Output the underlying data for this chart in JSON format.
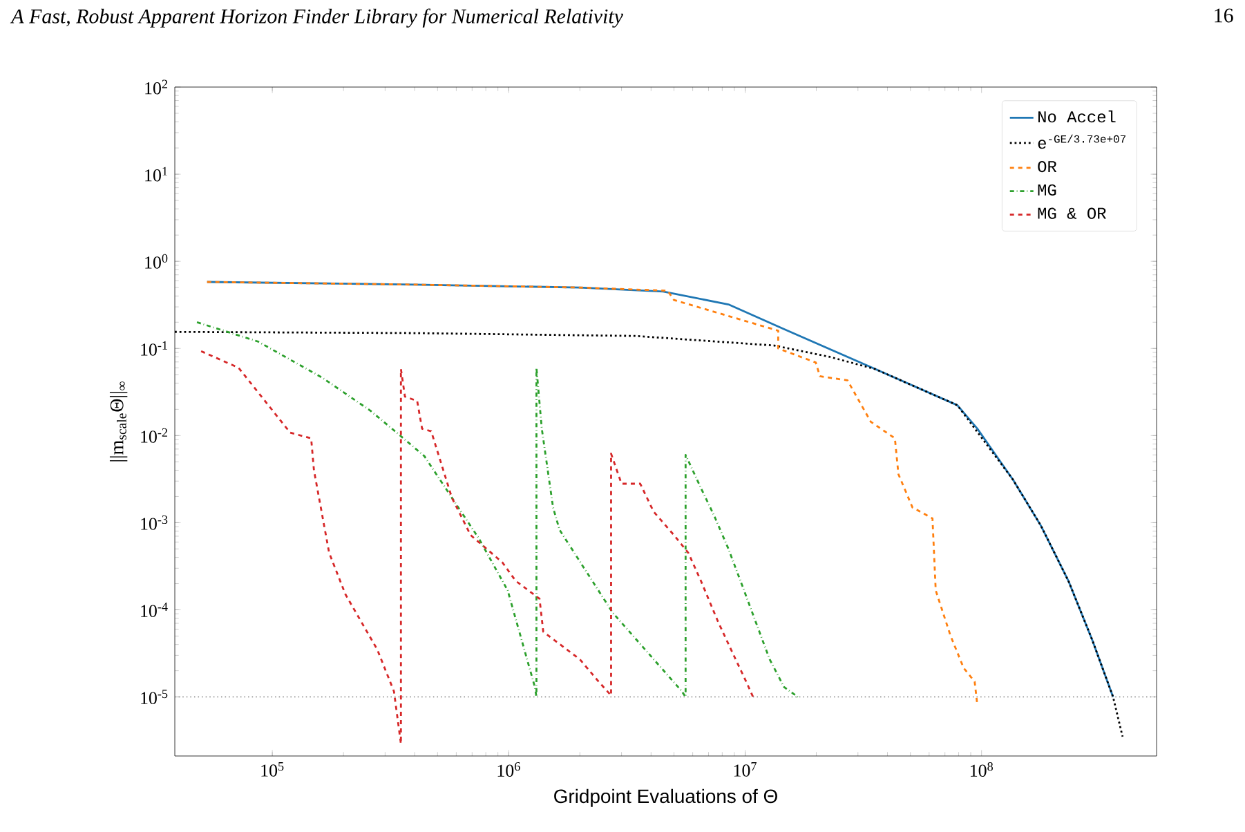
{
  "chart_data": {
    "type": "line",
    "annotations": [
      "A Fast, Robust Apparent Horizon Finder Library for Numerical Relativity",
      "16"
    ],
    "xlabel": "Gridpoint Evaluations of Θ",
    "ylabel": "||m$_{scale}$Θ||$_{∞}$",
    "log": "xy",
    "xlim": [
      38700,
      550000000
    ],
    "ylim": [
      2.1e-06,
      100
    ],
    "xticks": [
      {
        "value": 100000,
        "label": "10$^{5}$"
      },
      {
        "value": 1000000,
        "label": "10$^{6}$"
      },
      {
        "value": 10000000,
        "label": "10$^{7}$"
      },
      {
        "value": 100000000,
        "label": "10$^{8}$"
      }
    ],
    "yticks": [
      {
        "value": 1e-05,
        "label": "10$^{-5}$"
      },
      {
        "value": 0.0001,
        "label": "10$^{-4}$"
      },
      {
        "value": 0.001,
        "label": "10$^{-3}$"
      },
      {
        "value": 0.01,
        "label": "10$^{-2}$"
      },
      {
        "value": 0.1,
        "label": "10$^{-1}$"
      },
      {
        "value": 1,
        "label": "10$^{0}$"
      },
      {
        "value": 10,
        "label": "10$^{1}$"
      },
      {
        "value": 100,
        "label": "10$^{2}$"
      }
    ],
    "legend": "top right",
    "marker": "none",
    "ref_lines": [
      {
        "axis": "y",
        "value": 1e-05,
        "color": "#808080",
        "line_style": "dotted"
      }
    ],
    "series": [
      {
        "name": "No Accel",
        "color": "#1f77b4",
        "line_style": "solid",
        "x": [
          53000,
          400000,
          2000000,
          4500000,
          8500000,
          14600000,
          35500000,
          79000000,
          96000000,
          136000000,
          178000000,
          233000000,
          294000000,
          360000000
        ],
        "values": [
          0.58,
          0.54,
          0.5,
          0.45,
          0.32,
          0.167,
          0.058,
          0.0223,
          0.012,
          0.0031,
          0.00093,
          0.000215,
          4.5e-05,
          1e-05
        ]
      },
      {
        "name": "e$^{-GE/3.73e+07}$",
        "color": "#000000",
        "line_style": "dotted",
        "x": [
          38700,
          400000,
          3450000,
          13300000,
          22800000,
          35500000,
          79000000,
          136000000,
          178000000,
          233000000,
          294000000,
          360000000,
          395000000
        ],
        "values": [
          0.155,
          0.15,
          0.139,
          0.108,
          0.08,
          0.058,
          0.0223,
          0.0031,
          0.00093,
          0.000215,
          4.5e-05,
          1e-05,
          3.5e-06
        ]
      },
      {
        "name": "OR",
        "color": "#ff7f0e",
        "line_style": "dashed",
        "x": [
          53000,
          400000,
          2000000,
          4700000,
          5000000,
          13800000,
          13800000,
          19900000,
          20700000,
          27100000,
          34000000,
          43000000,
          44500000,
          51000000,
          62000000,
          64000000,
          74000000,
          84000000,
          93500000,
          96000000
        ],
        "values": [
          0.58,
          0.54,
          0.5,
          0.46,
          0.36,
          0.16,
          0.1,
          0.069,
          0.048,
          0.043,
          0.0144,
          0.0093,
          0.0036,
          0.0015,
          0.00112,
          0.000167,
          5e-05,
          2.15e-05,
          1.5e-05,
          8e-06
        ]
      },
      {
        "name": "MG",
        "color": "#2ca02c",
        "line_style": "dashdot",
        "x": [
          48000,
          87000,
          163000,
          260000,
          336000,
          440000,
          750000,
          990000,
          1290000,
          1310000,
          1310000,
          1380000,
          1540000,
          1640000,
          2750000,
          5400000,
          5600000,
          5600000,
          6500000,
          7400000,
          8500000,
          9700000,
          11100000,
          12700000,
          14600000,
          16700000
        ],
        "values": [
          0.2,
          0.12,
          0.046,
          0.0193,
          0.0108,
          0.0058,
          0.00065,
          0.000167,
          1.3e-05,
          1e-05,
          0.06,
          0.012,
          0.0015,
          0.00083,
          9.3e-05,
          1.16e-05,
          1e-05,
          0.006,
          0.0025,
          0.0012,
          0.0005,
          0.000193,
          7.2e-05,
          2.7e-05,
          1.3e-05,
          1e-05
        ]
      },
      {
        "name": "MG & OR",
        "color": "#d62728",
        "line_style": "dashed",
        "x": [
          50000,
          72000,
          119000,
          146000,
          150000,
          174000,
          204000,
          278000,
          327000,
          350000,
          350000,
          364000,
          410000,
          430000,
          470000,
          575000,
          690000,
          940000,
          1070000,
          1350000,
          1400000,
          2000000,
          2400000,
          2710000,
          2710000,
          3000000,
          3600000,
          4100000,
          5000000,
          5750000,
          6500000,
          7700000,
          8900000,
          10100000,
          10800000
        ],
        "values": [
          0.093,
          0.06,
          0.0108,
          0.0093,
          0.004,
          0.00045,
          0.00015,
          3.5e-05,
          1.16e-05,
          2.9e-06,
          0.058,
          0.028,
          0.025,
          0.012,
          0.0112,
          0.00193,
          0.00072,
          0.00035,
          0.000215,
          0.000134,
          5.6e-05,
          2.7e-05,
          1.5e-05,
          1.04e-05,
          0.0062,
          0.0028,
          0.0028,
          0.00134,
          0.00072,
          0.00045,
          0.000215,
          7.2e-05,
          3.1e-05,
          1.5e-05,
          1e-05
        ]
      }
    ]
  }
}
